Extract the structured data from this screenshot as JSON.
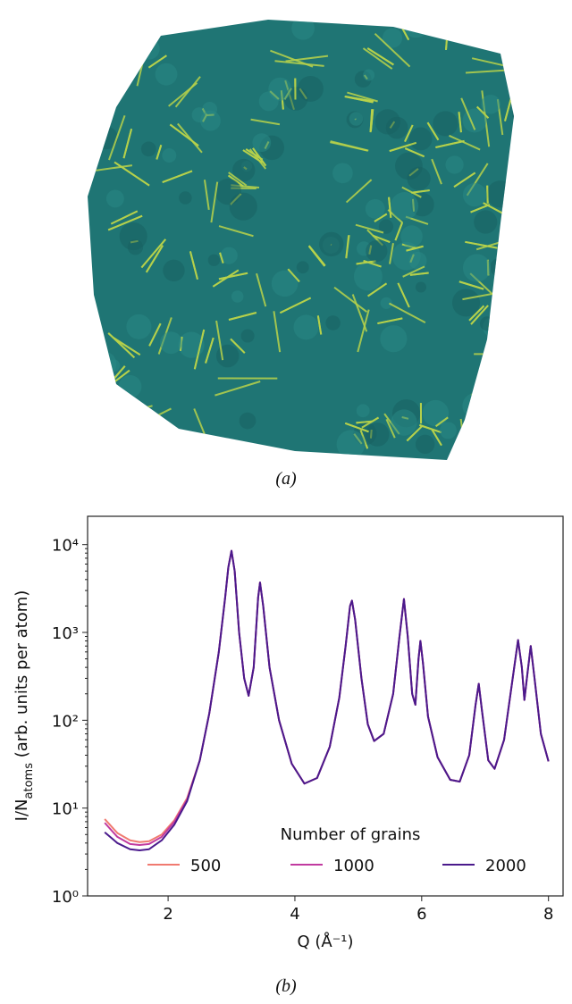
{
  "panel_a": {
    "caption": "(a)"
  },
  "chart_data": {
    "type": "line",
    "caption": "(b)",
    "xlabel": "Q (Å⁻¹)",
    "ylabel": {
      "main": "I/N",
      "sub": "atoms",
      "rest": " (arb. units per atom)"
    },
    "log_y": true,
    "xlim": [
      0.73,
      8.23
    ],
    "xticks": [
      2,
      4,
      6,
      8
    ],
    "ylim": [
      1,
      21000
    ],
    "yticks": [
      {
        "value": 1,
        "label": "10⁰"
      },
      {
        "value": 10,
        "label": "10¹"
      },
      {
        "value": 100,
        "label": "10²"
      },
      {
        "value": 1000,
        "label": "10³"
      },
      {
        "value": 10000,
        "label": "10⁴"
      }
    ],
    "legend_title": "Number of grains",
    "legend_loc": "lower center",
    "x": [
      1.0,
      1.2,
      1.4,
      1.55,
      1.7,
      1.9,
      2.1,
      2.3,
      2.5,
      2.65,
      2.8,
      2.9,
      2.95,
      3.0,
      3.05,
      3.12,
      3.2,
      3.27,
      3.35,
      3.42,
      3.45,
      3.5,
      3.6,
      3.75,
      3.95,
      4.15,
      4.35,
      4.55,
      4.7,
      4.8,
      4.87,
      4.9,
      4.95,
      5.05,
      5.15,
      5.25,
      5.4,
      5.55,
      5.65,
      5.72,
      5.78,
      5.85,
      5.9,
      5.95,
      5.98,
      6.02,
      6.1,
      6.25,
      6.45,
      6.6,
      6.75,
      6.85,
      6.9,
      6.95,
      7.05,
      7.15,
      7.3,
      7.42,
      7.52,
      7.58,
      7.62,
      7.67,
      7.72,
      7.78,
      7.88,
      8.0
    ],
    "series": [
      {
        "name": "500",
        "color": "#f07a70",
        "values": [
          7.5,
          5.2,
          4.3,
          4.1,
          4.2,
          5.0,
          7.3,
          13,
          35,
          120,
          600,
          2500,
          5500,
          8500,
          5000,
          1000,
          300,
          190,
          400,
          2500,
          3700,
          2000,
          400,
          100,
          32,
          19,
          22,
          50,
          180,
          700,
          2000,
          2300,
          1400,
          300,
          90,
          58,
          70,
          200,
          900,
          2400,
          900,
          200,
          150,
          500,
          800,
          450,
          110,
          38,
          21,
          20,
          40,
          150,
          260,
          130,
          35,
          28,
          60,
          250,
          820,
          400,
          170,
          350,
          700,
          300,
          70,
          34
        ]
      },
      {
        "name": "1000",
        "color": "#c13aa0",
        "values": [
          6.8,
          4.7,
          3.9,
          3.8,
          3.9,
          4.7,
          7.0,
          12.5,
          35,
          120,
          600,
          2500,
          5500,
          8500,
          5000,
          1000,
          300,
          190,
          400,
          2500,
          3700,
          2000,
          400,
          100,
          32,
          19,
          22,
          50,
          180,
          700,
          2000,
          2300,
          1400,
          300,
          90,
          58,
          70,
          200,
          900,
          2400,
          900,
          200,
          150,
          500,
          800,
          450,
          110,
          38,
          21,
          20,
          40,
          150,
          260,
          130,
          35,
          28,
          60,
          250,
          820,
          400,
          170,
          350,
          700,
          300,
          70,
          34
        ]
      },
      {
        "name": "2000",
        "color": "#4a1a8c",
        "values": [
          5.3,
          4.0,
          3.4,
          3.3,
          3.4,
          4.3,
          6.5,
          12,
          35,
          120,
          600,
          2500,
          5500,
          8500,
          5000,
          1000,
          300,
          190,
          400,
          2500,
          3700,
          2000,
          400,
          100,
          32,
          19,
          22,
          50,
          180,
          700,
          2000,
          2300,
          1400,
          300,
          90,
          58,
          70,
          200,
          900,
          2400,
          900,
          200,
          150,
          500,
          800,
          450,
          110,
          38,
          21,
          20,
          40,
          150,
          260,
          130,
          35,
          28,
          60,
          250,
          820,
          400,
          170,
          350,
          700,
          300,
          70,
          34
        ]
      }
    ]
  }
}
